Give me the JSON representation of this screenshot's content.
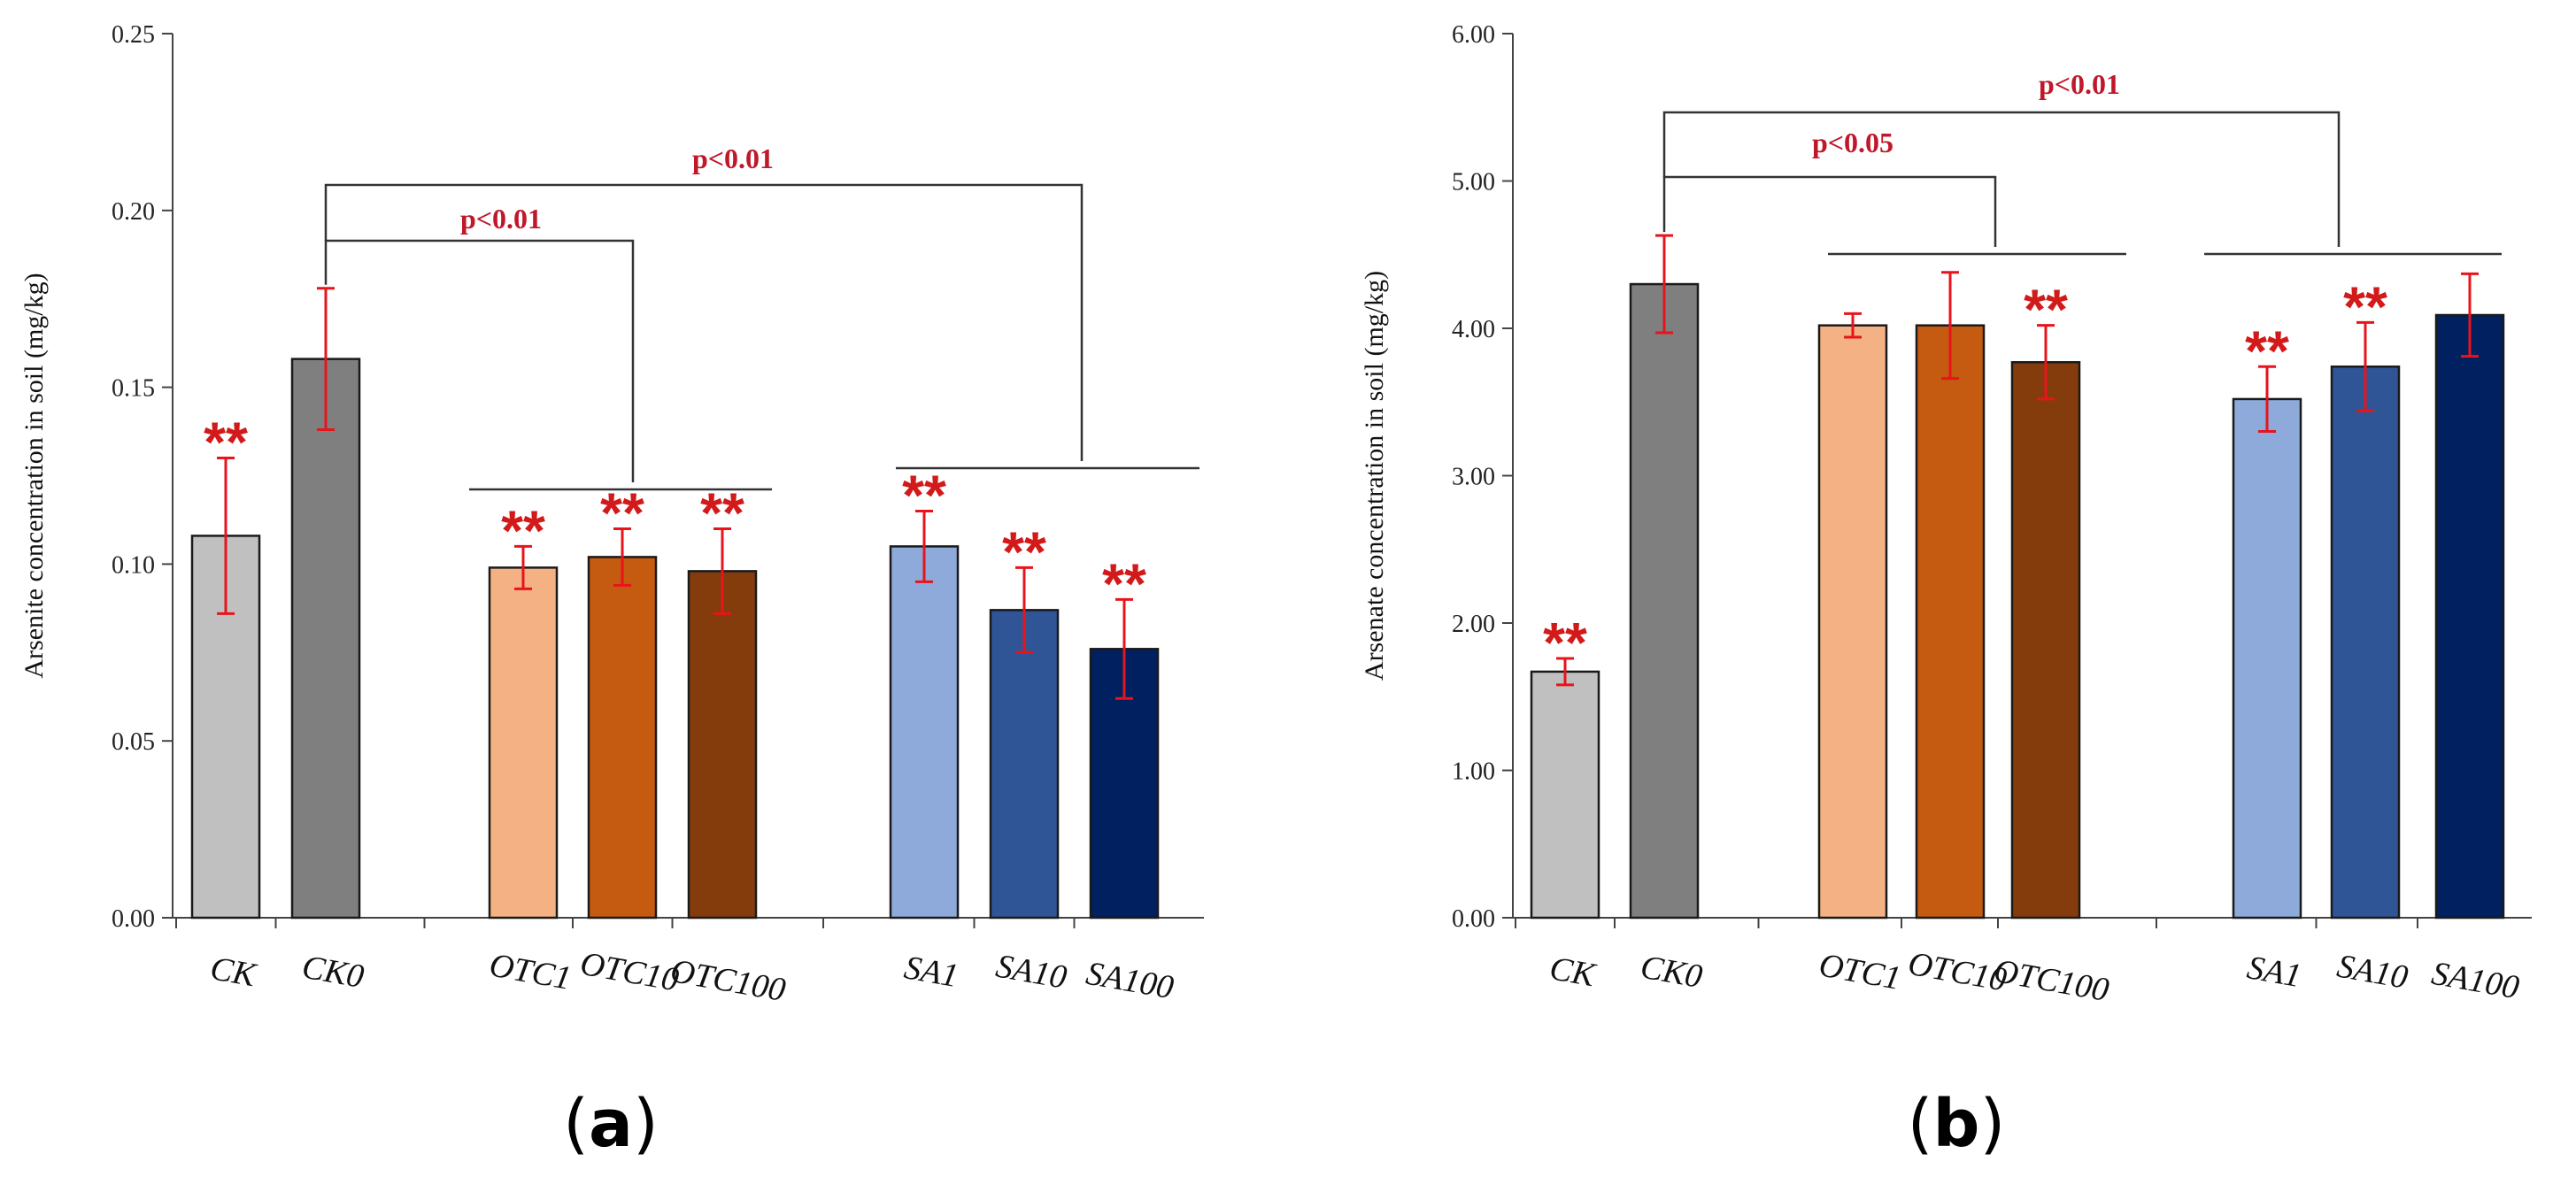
{
  "chart_data": [
    {
      "type": "bar",
      "panel_label": "a",
      "ylabel": "Arsenite concentration in soil (mg/kg)",
      "ylim": [
        0,
        0.25
      ],
      "yticks": [
        "0.00",
        "0.05",
        "0.10",
        "0.15",
        "0.20",
        "0.25"
      ],
      "categories": [
        "CK",
        "CK0",
        "OTC1",
        "OTC10",
        "OTC100",
        "SA1",
        "SA10",
        "SA100"
      ],
      "values": [
        0.108,
        0.158,
        0.099,
        0.102,
        0.098,
        0.105,
        0.087,
        0.076
      ],
      "errors": [
        0.022,
        0.02,
        0.006,
        0.008,
        0.012,
        0.01,
        0.012,
        0.014
      ],
      "colors": [
        "#c0c0c0",
        "#7f7f7f",
        "#f4b183",
        "#c55a11",
        "#843c0c",
        "#8eaadb",
        "#2f5597",
        "#002060"
      ],
      "significance": [
        "**",
        "",
        "**",
        "**",
        "**",
        "**",
        "**",
        "**"
      ],
      "comparisons": [
        {
          "label": "p<0.01",
          "from": "CK0",
          "to": "OTC group"
        },
        {
          "label": "p<0.01",
          "from": "CK0",
          "to": "SA group"
        }
      ]
    },
    {
      "type": "bar",
      "panel_label": "b",
      "ylabel": "Arsenate concentration in soil (mg/kg)",
      "ylim": [
        0,
        6
      ],
      "yticks": [
        "0.00",
        "1.00",
        "2.00",
        "3.00",
        "4.00",
        "5.00",
        "6.00"
      ],
      "categories": [
        "CK",
        "CK0",
        "OTC1",
        "OTC10",
        "OTC100",
        "SA1",
        "SA10",
        "SA100"
      ],
      "values": [
        1.67,
        4.3,
        4.02,
        4.02,
        3.77,
        3.52,
        3.74,
        4.09
      ],
      "errors": [
        0.09,
        0.33,
        0.08,
        0.36,
        0.25,
        0.22,
        0.3,
        0.28
      ],
      "colors": [
        "#c0c0c0",
        "#7f7f7f",
        "#f4b183",
        "#c55a11",
        "#843c0c",
        "#8eaadb",
        "#2f5597",
        "#002060"
      ],
      "significance": [
        "**",
        "",
        "",
        "",
        "**",
        "**",
        "**",
        ""
      ],
      "comparisons": [
        {
          "label": "p<0.05",
          "from": "CK0",
          "to": "OTC group"
        },
        {
          "label": "p<0.01",
          "from": "CK0",
          "to": "SA group"
        }
      ]
    }
  ]
}
